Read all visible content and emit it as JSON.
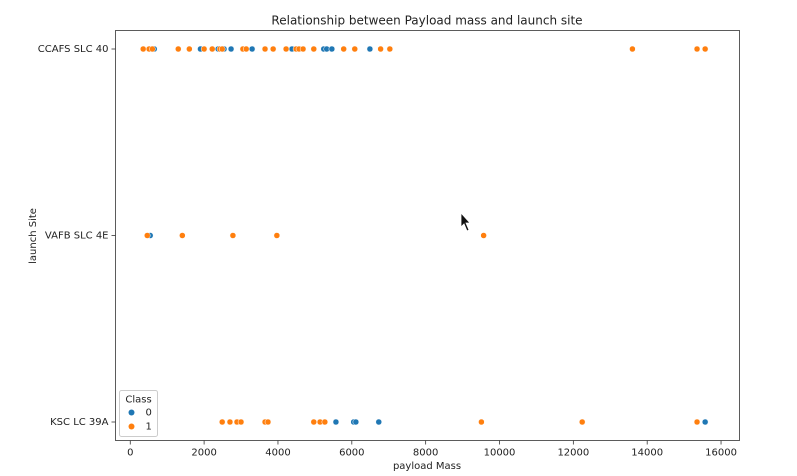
{
  "chart_data": {
    "type": "scatter",
    "title": "Relationship between Payload mass and launch site",
    "x_label": "payload Mass",
    "y_label": "launch Site",
    "categories": [
      "CCAFS SLC 40",
      "VAFB SLC 4E",
      "KSC LC 39A"
    ],
    "xlim": [
      -400,
      16500
    ],
    "xticks": [
      0,
      2000,
      4000,
      6000,
      8000,
      10000,
      12000,
      14000,
      16000
    ],
    "legend_title": "Class",
    "legend_loc": "lower left",
    "series": [
      {
        "name": "0",
        "color": "#1f77b4",
        "x": [
          650,
          1900,
          2380,
          2540,
          2730,
          3300,
          4380,
          5240,
          5320,
          5460,
          6490,
          540,
          5570,
          6050,
          6110,
          6730,
          15570
        ],
        "y": [
          "CCAFS SLC 40",
          "CCAFS SLC 40",
          "CCAFS SLC 40",
          "CCAFS SLC 40",
          "CCAFS SLC 40",
          "CCAFS SLC 40",
          "CCAFS SLC 40",
          "CCAFS SLC 40",
          "CCAFS SLC 40",
          "CCAFS SLC 40",
          "CCAFS SLC 40",
          "VAFB SLC 4E",
          "KSC LC 39A",
          "KSC LC 39A",
          "KSC LC 39A",
          "KSC LC 39A",
          "KSC LC 39A"
        ]
      },
      {
        "name": "1",
        "color": "#ff7f0e",
        "x": [
          350,
          510,
          600,
          1300,
          1600,
          2000,
          2220,
          2430,
          2490,
          3050,
          3140,
          3650,
          3870,
          4220,
          4490,
          4570,
          4680,
          4970,
          5780,
          6080,
          6780,
          7030,
          13600,
          15350,
          15570,
          460,
          1410,
          2780,
          3970,
          9570,
          2490,
          2700,
          2890,
          3000,
          3650,
          3730,
          4970,
          5140,
          5270,
          9510,
          12240,
          15350
        ],
        "y": [
          "CCAFS SLC 40",
          "CCAFS SLC 40",
          "CCAFS SLC 40",
          "CCAFS SLC 40",
          "CCAFS SLC 40",
          "CCAFS SLC 40",
          "CCAFS SLC 40",
          "CCAFS SLC 40",
          "CCAFS SLC 40",
          "CCAFS SLC 40",
          "CCAFS SLC 40",
          "CCAFS SLC 40",
          "CCAFS SLC 40",
          "CCAFS SLC 40",
          "CCAFS SLC 40",
          "CCAFS SLC 40",
          "CCAFS SLC 40",
          "CCAFS SLC 40",
          "CCAFS SLC 40",
          "CCAFS SLC 40",
          "CCAFS SLC 40",
          "CCAFS SLC 40",
          "CCAFS SLC 40",
          "CCAFS SLC 40",
          "CCAFS SLC 40",
          "VAFB SLC 4E",
          "VAFB SLC 4E",
          "VAFB SLC 4E",
          "VAFB SLC 4E",
          "VAFB SLC 4E",
          "KSC LC 39A",
          "KSC LC 39A",
          "KSC LC 39A",
          "KSC LC 39A",
          "KSC LC 39A",
          "KSC LC 39A",
          "KSC LC 39A",
          "KSC LC 39A",
          "KSC LC 39A",
          "KSC LC 39A",
          "KSC LC 39A",
          "KSC LC 39A"
        ]
      }
    ]
  }
}
